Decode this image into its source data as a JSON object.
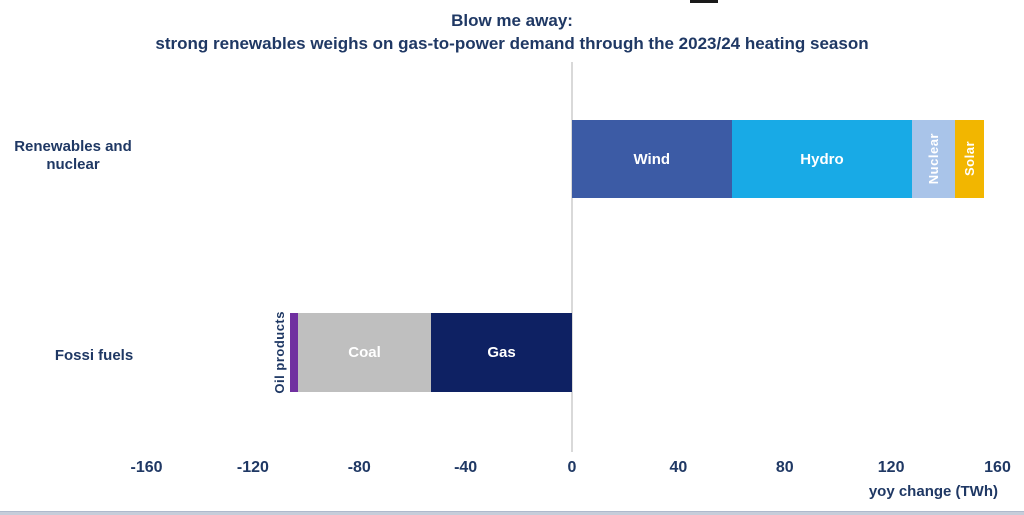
{
  "title": {
    "line1": "Blow me away:",
    "line2": "strong renewables weighs on gas-to-power demand through the 2023/24 heating season"
  },
  "colors": {
    "text_navy": "#1F3864",
    "zero_line": "#D9D9D9",
    "wind": "#3C5BA5",
    "hydro": "#18AAE6",
    "nuclear": "#A9C4E9",
    "solar": "#F2B600",
    "oil_products": "#7030A0",
    "coal": "#BFBFBF",
    "gas": "#0E2163",
    "bottom_border": "#C6CDDA"
  },
  "chart_data": {
    "type": "bar",
    "orientation": "horizontal",
    "stacked": true,
    "diverging": true,
    "title": "Blow me away: strong renewables weighs on gas-to-power demand through the 2023/24 heating season",
    "xlabel": "yoy change (TWh)",
    "unit": "TWh",
    "xlim": [
      -160,
      160
    ],
    "x_ticks": [
      -160,
      -120,
      -80,
      -40,
      0,
      40,
      80,
      120,
      160
    ],
    "grid": false,
    "legend": "none",
    "rows": [
      {
        "category": "Renewables and nuclear",
        "category_lines": [
          "Renewables and",
          "nuclear"
        ],
        "total": 155,
        "segments": [
          {
            "name": "Wind",
            "value": 60,
            "color": "#3C5BA5",
            "label_color": "#FFFFFF",
            "label_rotation": "horizontal",
            "label_position": "inside"
          },
          {
            "name": "Hydro",
            "value": 68,
            "color": "#18AAE6",
            "label_color": "#FFFFFF",
            "label_rotation": "horizontal",
            "label_position": "inside"
          },
          {
            "name": "Nuclear",
            "value": 16,
            "color": "#A9C4E9",
            "label_color": "#FFFFFF",
            "label_rotation": "vertical",
            "label_position": "inside"
          },
          {
            "name": "Solar",
            "value": 11,
            "color": "#F2B600",
            "label_color": "#FFFFFF",
            "label_rotation": "vertical",
            "label_position": "inside"
          }
        ]
      },
      {
        "category": "Fossi fuels",
        "category_lines": [
          "Fossi fuels"
        ],
        "total": -106,
        "segments": [
          {
            "name": "Oil products",
            "value": -3,
            "color": "#7030A0",
            "label_color": "#1F3864",
            "label_rotation": "vertical",
            "label_position": "outside-left"
          },
          {
            "name": "Coal",
            "value": -50,
            "color": "#BFBFBF",
            "label_color": "#FFFFFF",
            "label_rotation": "horizontal",
            "label_position": "inside"
          },
          {
            "name": "Gas",
            "value": -53,
            "color": "#0E2163",
            "label_color": "#FFFFFF",
            "label_rotation": "horizontal",
            "label_position": "inside"
          }
        ]
      }
    ]
  }
}
